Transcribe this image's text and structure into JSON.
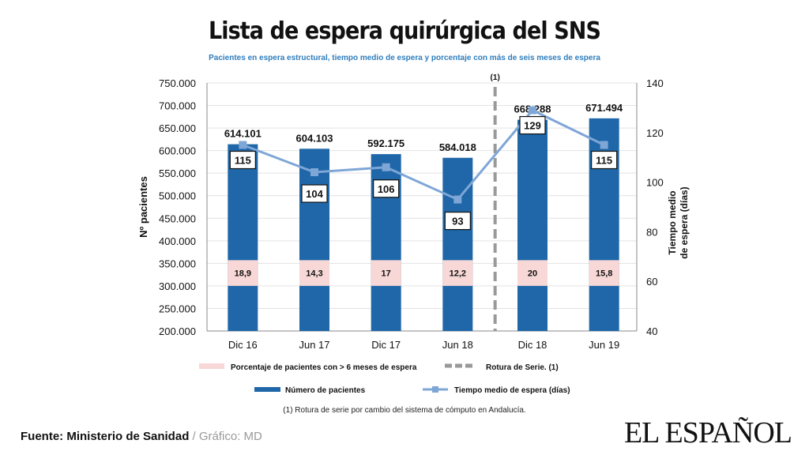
{
  "title": "Lista de espera quirúrgica del SNS",
  "subtitle": "Pacientes en espera estructural, tiempo medio de espera  y porcentaje con más de seis meses de espera",
  "source": {
    "label": "Fuente: Ministerio de Sanidad",
    "sep": " / ",
    "credit": "Gráfico: MD"
  },
  "logo": "EL ESPAÑOL",
  "chart_data": {
    "type": "bar",
    "categories": [
      "Dic 16",
      "Jun 17",
      "Dic 17",
      "Jun 18",
      "Dic 18",
      "Jun 19"
    ],
    "series": [
      {
        "name": "Número de pacientes",
        "type": "bar",
        "axis": "left",
        "color": "#1f67a8",
        "values": [
          614101,
          604103,
          592175,
          584018,
          668288,
          671494
        ],
        "labels": [
          "614.101",
          "604.103",
          "592.175",
          "584.018",
          "668.288",
          "671.494"
        ]
      },
      {
        "name": "Tiempo medio de espera (días)",
        "type": "line",
        "axis": "right",
        "color": "#7ea6d6",
        "values": [
          115,
          104,
          106,
          93,
          129,
          115
        ]
      },
      {
        "name": "Porcentaje de pacientes con > 6 meses  de espera",
        "type": "label",
        "color": "#f8d7d7",
        "values": [
          18.9,
          14.3,
          17,
          12.2,
          20,
          15.8
        ],
        "labels": [
          "18,9",
          "14,3",
          "17",
          "12,2",
          "20",
          "15,8"
        ]
      }
    ],
    "ylabel": "Nº pacientes",
    "ylabel_right": [
      "Tiempo medio",
      "de espera (días)"
    ],
    "ylim": [
      200000,
      750000
    ],
    "ylim_right": [
      40,
      140
    ],
    "yticks": [
      "200.000",
      "250.000",
      "300.000",
      "350.000",
      "400.000",
      "450.000",
      "500.000",
      "550.000",
      "600.000",
      "650.000",
      "700.000",
      "750.000"
    ],
    "yticks_right": [
      "40",
      "60",
      "80",
      "100",
      "120",
      "140"
    ],
    "series_break": {
      "label": "(1)",
      "after_category": "Jun 18",
      "legend": "Rotura de Serie. (1)",
      "color": "#999999"
    },
    "footnote": "(1) Rotura de serie por cambio del sistema de cómputo en Andalucía.",
    "legend_position": "bottom",
    "grid": true
  }
}
